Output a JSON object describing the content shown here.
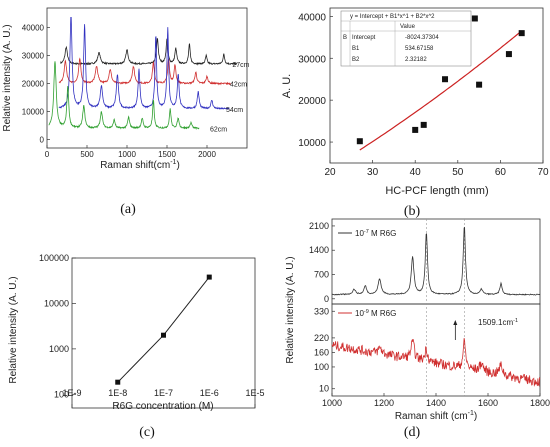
{
  "panel_labels": [
    "(a)",
    "(b)",
    "(c)",
    "(d)"
  ],
  "chart_data": [
    {
      "panel": "(a)",
      "type": "line",
      "xlabel": "Raman shift(cm",
      "xlabel_sup": "-1",
      "xlabel_end": ")",
      "ylabel": "Relative intensity (A. U.)",
      "xlim": [
        0,
        2500
      ],
      "ylim": [
        -3000,
        47000
      ],
      "xticks": [
        0,
        500,
        1000,
        1500,
        2000
      ],
      "yticks": [
        0,
        10000,
        20000,
        30000,
        40000
      ],
      "series": [
        {
          "name": "27cm",
          "color": "#222222",
          "baseline": 27000,
          "x_start": 170,
          "x_end": 2380,
          "end_label_x": 2280,
          "peaks": [
            [
              240,
              6000,
              18
            ],
            [
              650,
              4000,
              20
            ],
            [
              1000,
              5000,
              18
            ],
            [
              1380,
              9000,
              14
            ],
            [
              1500,
              8500,
              14
            ],
            [
              1610,
              5500,
              14
            ],
            [
              1780,
              7000,
              12
            ],
            [
              1990,
              3000,
              12
            ],
            [
              2210,
              3500,
              12
            ]
          ]
        },
        {
          "name": "42cm",
          "color": "#d03030",
          "baseline": 20000,
          "x_start": 150,
          "x_end": 2300,
          "end_label_x": 2250,
          "peaks": [
            [
              230,
              8000,
              18
            ],
            [
              410,
              9000,
              16
            ],
            [
              620,
              6000,
              20
            ],
            [
              790,
              5000,
              18
            ],
            [
              1080,
              6000,
              18
            ],
            [
              1330,
              7500,
              14
            ],
            [
              1520,
              8500,
              14
            ],
            [
              1600,
              6500,
              14
            ],
            [
              1860,
              4000,
              14
            ],
            [
              2000,
              2500,
              14
            ]
          ]
        },
        {
          "name": "54cm",
          "color": "#3030c0",
          "baseline": 11000,
          "x_start": 150,
          "x_end": 2280,
          "end_label_x": 2200,
          "peaks": [
            [
              300,
              33000,
              16
            ],
            [
              470,
              30000,
              14
            ],
            [
              680,
              8000,
              18
            ],
            [
              880,
              12000,
              16
            ],
            [
              1150,
              14000,
              14
            ],
            [
              1360,
              26000,
              12
            ],
            [
              1510,
              29000,
              12
            ],
            [
              1640,
              12000,
              14
            ],
            [
              1890,
              6000,
              14
            ],
            [
              2060,
              3000,
              14
            ]
          ]
        },
        {
          "name": "62cm",
          "color": "#30a030",
          "baseline": 4000,
          "x_start": 20,
          "x_end": 1900,
          "end_label_x": 2000,
          "peaks": [
            [
              100,
              24000,
              18
            ],
            [
              260,
              15000,
              14
            ],
            [
              460,
              8000,
              16
            ],
            [
              680,
              6000,
              16
            ],
            [
              840,
              3000,
              14
            ],
            [
              1020,
              4000,
              14
            ],
            [
              1190,
              3500,
              14
            ],
            [
              1330,
              10000,
              12
            ],
            [
              1540,
              7000,
              12
            ],
            [
              1640,
              3500,
              14
            ],
            [
              1800,
              2000,
              14
            ]
          ]
        }
      ]
    },
    {
      "panel": "(b)",
      "type": "scatter",
      "xlabel": "HC-PCF length (mm)",
      "ylabel": "A. U.",
      "xlim": [
        20,
        70
      ],
      "ylim": [
        5000,
        42000
      ],
      "xticks": [
        20,
        30,
        40,
        50,
        60,
        70
      ],
      "yticks": [
        10000,
        20000,
        30000,
        40000
      ],
      "points_x": [
        27,
        40,
        42,
        47,
        54,
        55,
        62,
        65
      ],
      "points_y": [
        10200,
        12900,
        14100,
        25000,
        39500,
        23700,
        31000,
        36000
      ],
      "fit": {
        "intercept": -8024.37304,
        "b1": 534.67158,
        "b2": 2.32182,
        "x_range": [
          27,
          65
        ],
        "color": "#cc2222"
      },
      "table": {
        "equation": "y = Intercept + B1*x^1 + B2*x^2",
        "value_header": "Value",
        "group_label": "B",
        "rows": [
          {
            "name": "Intercept",
            "value": "-8024.37304"
          },
          {
            "name": "B1",
            "value": "534.67158"
          },
          {
            "name": "B2",
            "value": "2.32182"
          }
        ]
      }
    },
    {
      "panel": "(c)",
      "type": "line",
      "scale": "log-log",
      "xlabel": "R6G concentration (M)",
      "ylabel": "Relative intensity (A. U.)",
      "xlim": [
        1e-09,
        1e-05
      ],
      "ylim": [
        50,
        100000
      ],
      "xtick_labels": [
        "1E-9",
        "1E-8",
        "1E-7",
        "1E-6",
        "1E-5"
      ],
      "xtick_values": [
        1e-09,
        1e-08,
        1e-07,
        1e-06,
        1e-05
      ],
      "ytick_labels": [
        "100",
        "1000",
        "10000",
        "100000"
      ],
      "ytick_values": [
        100,
        1000,
        10000,
        100000
      ],
      "x": [
        1e-08,
        1e-07,
        1e-06
      ],
      "y": [
        185,
        2000,
        38000
      ]
    },
    {
      "panel": "(d)",
      "type": "line",
      "xlabel": "Raman shift (cm",
      "xlabel_sup": "-1",
      "xlabel_end": ")",
      "ylabel": "Relative intensity (A. U.)",
      "xlim": [
        1000,
        1800
      ],
      "xticks": [
        1000,
        1200,
        1400,
        1600,
        1800
      ],
      "dashed_lines_x": [
        1363,
        1509
      ],
      "annotation": "1509.1cm",
      "annotation_sup": "-1",
      "top": {
        "legend_prefix": "10",
        "legend_exp": "-7",
        "legend_suffix": " M R6G",
        "color": "#333333",
        "ylim": [
          -150,
          2300
        ],
        "yticks": [
          0,
          700,
          1400,
          2100
        ],
        "baseline": 120,
        "peaks": [
          [
            1085,
            150,
            7
          ],
          [
            1128,
            250,
            6
          ],
          [
            1183,
            450,
            7
          ],
          [
            1310,
            1100,
            6
          ],
          [
            1363,
            1800,
            5
          ],
          [
            1509,
            2000,
            5
          ],
          [
            1575,
            150,
            6
          ],
          [
            1650,
            320,
            5
          ]
        ]
      },
      "bottom": {
        "legend_prefix": "10",
        "legend_exp": "-9",
        "legend_suffix": " M R6G",
        "color": "#d03030",
        "ylim": [
          -20,
          360
        ],
        "yticks": [
          10,
          100,
          160,
          220,
          330
        ],
        "ytick_labels": [
          "10",
          "100",
          "160",
          "220",
          "330"
        ],
        "peaks": [
          [
            1185,
            25,
            8
          ],
          [
            1310,
            70,
            8
          ],
          [
            1363,
            55,
            6
          ],
          [
            1509,
            110,
            6
          ],
          [
            1575,
            35,
            8
          ],
          [
            1650,
            40,
            8
          ]
        ]
      }
    }
  ]
}
